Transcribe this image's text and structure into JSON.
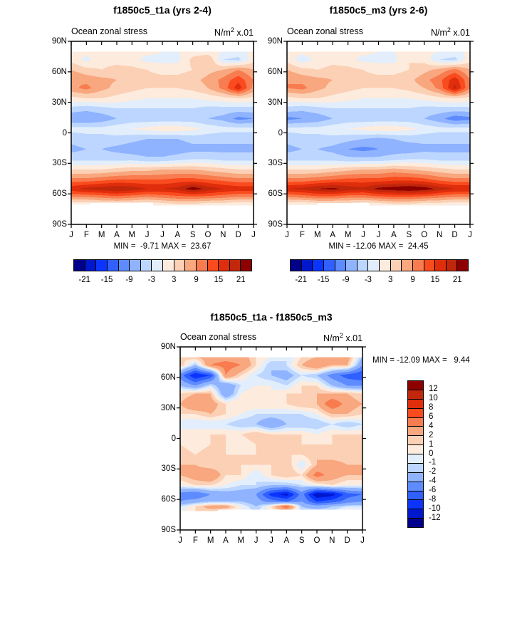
{
  "figure": {
    "field_label": "Ocean zonal stress",
    "unit_base": "N/m",
    "unit_sup": "2",
    "unit_tail": " x.01",
    "months": [
      "J",
      "F",
      "M",
      "A",
      "M",
      "J",
      "J",
      "A",
      "S",
      "O",
      "N",
      "D",
      "J"
    ],
    "lat_ticks": [
      "90N",
      "60N",
      "30N",
      "0",
      "30S",
      "60S",
      "90S"
    ]
  },
  "palette": [
    "#00008B",
    "#0018CD",
    "#0B35FF",
    "#3060FF",
    "#5E8BFF",
    "#8FB3FF",
    "#BCD6FF",
    "#E2EEFB",
    "#FDEBDD",
    "#FBD0B5",
    "#F8A77E",
    "#F87C4F",
    "#FA4B1E",
    "#E02D0C",
    "#C1270B",
    "#8E0000"
  ],
  "chart_data": [
    {
      "type": "heatmap",
      "subtype": "filled-contour-hovmoller",
      "title": "f1850c5_t1a (yrs 2-4)",
      "subtitle_left": "Ocean zonal stress",
      "subtitle_right": "N/m2 x.01",
      "x_tick_labels": [
        "J",
        "F",
        "M",
        "A",
        "M",
        "J",
        "J",
        "A",
        "S",
        "O",
        "N",
        "D",
        "J"
      ],
      "y_tick_labels": [
        "90N",
        "60N",
        "30N",
        "0",
        "30S",
        "60S",
        "90S"
      ],
      "ylim": [
        90,
        -90
      ],
      "min": -9.71,
      "max": 23.67,
      "minmax_label": "MIN =  -9.71 MAX =  23.67",
      "levels": [
        -21,
        -18,
        -15,
        -12,
        -9,
        -6,
        -3,
        0,
        3,
        6,
        9,
        12,
        15,
        18,
        21
      ],
      "colorbar": {
        "orientation": "horizontal",
        "labels": [
          "-21",
          "-15",
          "-9",
          "-3",
          "3",
          "9",
          "15",
          "21"
        ],
        "label_boundaries": [
          1,
          3,
          5,
          7,
          9,
          11,
          13,
          15
        ]
      },
      "lats": [
        80,
        72,
        62,
        52,
        44,
        34,
        24,
        14,
        4,
        -6,
        -16,
        -26,
        -36,
        -46,
        -55,
        -63,
        -69,
        -73
      ],
      "values": [
        [
          1,
          1,
          2,
          2,
          1,
          1,
          0,
          0,
          1,
          1,
          0,
          -1,
          1
        ],
        [
          2,
          -1,
          2,
          2,
          1,
          -1,
          -1,
          -1,
          4,
          6,
          -3,
          -4,
          2
        ],
        [
          6,
          4,
          3,
          4,
          4,
          3,
          2,
          2,
          3,
          5,
          6,
          9,
          6
        ],
        [
          9,
          8,
          7,
          6,
          5,
          4,
          4,
          4,
          5,
          7,
          10,
          14,
          9
        ],
        [
          8,
          10,
          7,
          5,
          4,
          3,
          3,
          3,
          4,
          6,
          10,
          17,
          8
        ],
        [
          2,
          3,
          3,
          2,
          1,
          0,
          0,
          0,
          0,
          1,
          2,
          3,
          2
        ],
        [
          -4,
          -5,
          -4,
          -3,
          -3,
          -3,
          -3,
          -3,
          -3,
          -4,
          -4,
          -4,
          -4
        ],
        [
          -9,
          -9,
          -8,
          -6,
          -5,
          -5,
          -5,
          -5,
          -5,
          -6,
          -7,
          -10,
          -9
        ],
        [
          -2,
          -2,
          -2,
          -1,
          0,
          1,
          2,
          2,
          1,
          -1,
          -2,
          -2,
          -2
        ],
        [
          -5,
          -4,
          -4,
          -4,
          -5,
          -6,
          -6,
          -6,
          -5,
          -5,
          -5,
          -5,
          -5
        ],
        [
          -7,
          -6,
          -6,
          -7,
          -8,
          -9,
          -9,
          -8,
          -7,
          -7,
          -7,
          -7,
          -7
        ],
        [
          -4,
          -4,
          -4,
          -4,
          -4,
          -5,
          -5,
          -4,
          -3,
          -3,
          -4,
          -4,
          -4
        ],
        [
          3,
          3,
          3,
          4,
          5,
          5,
          6,
          6,
          6,
          5,
          4,
          3,
          3
        ],
        [
          10,
          10,
          11,
          12,
          12,
          12,
          12,
          13,
          13,
          12,
          11,
          10,
          10
        ],
        [
          17,
          19,
          20,
          21,
          20,
          18,
          18,
          19,
          23,
          20,
          18,
          17,
          17
        ],
        [
          9,
          9,
          10,
          11,
          10,
          9,
          10,
          11,
          11,
          11,
          10,
          9,
          9
        ],
        [
          2,
          2,
          3,
          3,
          3,
          2,
          3,
          4,
          4,
          3,
          3,
          2,
          2
        ],
        [
          -1,
          -1,
          0,
          0,
          0,
          -1,
          -1,
          0,
          0,
          -1,
          -1,
          -1,
          -1
        ]
      ],
      "mask_below": [
        [
          0,
          1.3,
          -70.5
        ],
        [
          1.3,
          5.4,
          -68.5
        ],
        [
          5.4,
          12,
          -71.5
        ]
      ]
    },
    {
      "type": "heatmap",
      "subtype": "filled-contour-hovmoller",
      "title": "f1850c5_m3 (yrs 2-6)",
      "subtitle_left": "Ocean zonal stress",
      "subtitle_right": "N/m2 x.01",
      "x_tick_labels": [
        "J",
        "F",
        "M",
        "A",
        "M",
        "J",
        "J",
        "A",
        "S",
        "O",
        "N",
        "D",
        "J"
      ],
      "y_tick_labels": [
        "90N",
        "60N",
        "30N",
        "0",
        "30S",
        "60S",
        "90S"
      ],
      "ylim": [
        90,
        -90
      ],
      "min": -12.06,
      "max": 24.45,
      "minmax_label": "MIN = -12.06 MAX =  24.45",
      "levels": [
        -21,
        -18,
        -15,
        -12,
        -9,
        -6,
        -3,
        0,
        3,
        6,
        9,
        12,
        15,
        18,
        21
      ],
      "colorbar": {
        "orientation": "horizontal",
        "labels": [
          "-21",
          "-15",
          "-9",
          "-3",
          "3",
          "9",
          "15",
          "21"
        ],
        "label_boundaries": [
          1,
          3,
          5,
          7,
          9,
          11,
          13,
          15
        ]
      },
      "lats": [
        80,
        72,
        62,
        52,
        44,
        34,
        24,
        14,
        4,
        -6,
        -16,
        -26,
        -36,
        -46,
        -55,
        -63,
        -69,
        -73
      ],
      "values": [
        [
          1,
          1,
          2,
          2,
          1,
          1,
          0,
          0,
          2,
          1,
          0,
          -1,
          1
        ],
        [
          2,
          -2,
          1,
          2,
          1,
          -1,
          -1,
          -1,
          3,
          2,
          -3,
          -4,
          2
        ],
        [
          6,
          4,
          3,
          4,
          4,
          3,
          2,
          2,
          3,
          5,
          7,
          10,
          6
        ],
        [
          9,
          8,
          7,
          6,
          5,
          4,
          4,
          4,
          5,
          8,
          11,
          17,
          9
        ],
        [
          9,
          10,
          7,
          5,
          4,
          3,
          3,
          3,
          4,
          6,
          10,
          19,
          9
        ],
        [
          2,
          3,
          3,
          2,
          1,
          0,
          0,
          0,
          0,
          1,
          2,
          3,
          2
        ],
        [
          -4,
          -5,
          -4,
          -3,
          -3,
          -3,
          -3,
          -3,
          -3,
          -4,
          -4,
          -4,
          -4
        ],
        [
          -10,
          -9,
          -8,
          -6,
          -5,
          -5,
          -5,
          -5,
          -5,
          -6,
          -8,
          -11,
          -10
        ],
        [
          -2,
          -2,
          -2,
          -1,
          0,
          1,
          2,
          2,
          1,
          -1,
          -2,
          -2,
          -2
        ],
        [
          -5,
          -4,
          -4,
          -4,
          -5,
          -6,
          -7,
          -6,
          -5,
          -5,
          -5,
          -5,
          -5
        ],
        [
          -7,
          -6,
          -6,
          -7,
          -9,
          -10,
          -9,
          -8,
          -8,
          -7,
          -7,
          -7,
          -7
        ],
        [
          -4,
          -4,
          -4,
          -4,
          -5,
          -5,
          -5,
          -4,
          -3,
          -3,
          -4,
          -4,
          -4
        ],
        [
          3,
          3,
          3,
          4,
          5,
          6,
          6,
          7,
          6,
          5,
          4,
          3,
          3
        ],
        [
          10,
          10,
          11,
          12,
          13,
          13,
          13,
          14,
          14,
          13,
          11,
          10,
          10
        ],
        [
          18,
          19,
          21,
          22,
          20,
          19,
          22,
          23,
          24,
          23,
          20,
          18,
          18
        ],
        [
          9,
          10,
          11,
          11,
          10,
          10,
          11,
          12,
          12,
          11,
          10,
          9,
          9
        ],
        [
          2,
          2,
          3,
          3,
          3,
          2,
          3,
          4,
          4,
          3,
          3,
          2,
          2
        ],
        [
          -1,
          -1,
          0,
          0,
          0,
          -1,
          -1,
          0,
          0,
          -1,
          -2,
          -2,
          -1
        ]
      ],
      "mask_below": [
        [
          0,
          2,
          -71
        ],
        [
          2,
          5.4,
          -69
        ],
        [
          5.4,
          12,
          -71.5
        ]
      ]
    },
    {
      "type": "heatmap",
      "subtype": "filled-contour-hovmoller-difference",
      "title": "f1850c5_t1a - f1850c5_m3",
      "subtitle_left": "Ocean zonal stress",
      "subtitle_right": "N/m2 x.01",
      "x_tick_labels": [
        "J",
        "F",
        "M",
        "A",
        "M",
        "J",
        "J",
        "A",
        "S",
        "O",
        "N",
        "D",
        "J"
      ],
      "y_tick_labels": [
        "90N",
        "60N",
        "30N",
        "0",
        "30S",
        "60S",
        "90S"
      ],
      "ylim": [
        90,
        -90
      ],
      "min": -12.09,
      "max": 9.44,
      "minmax_label": "MIN = -12.09 MAX =   9.44",
      "levels": [
        -12,
        -10,
        -8,
        -6,
        -4,
        -2,
        -1,
        0,
        1,
        2,
        4,
        6,
        8,
        10,
        12
      ],
      "colorbar": {
        "orientation": "vertical",
        "labels": [
          "12",
          "10",
          "8",
          "6",
          "4",
          "2",
          "1",
          "0",
          "-1",
          "-2",
          "-4",
          "-6",
          "-8",
          "-10",
          "-12"
        ],
        "label_boundaries": [
          1,
          2,
          3,
          4,
          5,
          6,
          7,
          8,
          9,
          10,
          11,
          12,
          13,
          14,
          15
        ]
      },
      "lats": [
        80,
        72,
        62,
        52,
        44,
        34,
        24,
        14,
        4,
        -6,
        -16,
        -26,
        -36,
        -46,
        -55,
        -62,
        -67,
        -72
      ],
      "values": [
        [
          1,
          2,
          3,
          3,
          3,
          1,
          0,
          -1,
          1,
          2,
          2,
          3,
          -2
        ],
        [
          2,
          -2,
          4,
          5,
          4,
          1,
          -2,
          -1,
          2,
          4,
          2,
          2,
          -4
        ],
        [
          -5,
          -10,
          -8,
          4,
          1,
          -1,
          -2,
          -3,
          -1,
          -2,
          -5,
          -7,
          -8
        ],
        [
          -2,
          -4,
          -1,
          -4,
          -1,
          0,
          0,
          -1,
          1,
          1,
          -2,
          -4,
          -4
        ],
        [
          1,
          2,
          2,
          -4,
          0,
          1,
          0,
          1,
          1,
          2,
          2,
          2,
          1
        ],
        [
          2,
          4,
          3,
          1,
          1,
          1,
          1,
          1,
          2,
          2,
          6,
          3,
          2
        ],
        [
          1,
          1,
          2,
          1,
          0,
          -1,
          -1,
          -1,
          -1,
          0,
          2,
          2,
          1
        ],
        [
          -1,
          -1,
          -1,
          -1,
          -2,
          -2,
          -4,
          -2,
          -2,
          -2,
          -1,
          -2,
          -1
        ],
        [
          1,
          1,
          1,
          1,
          1,
          2,
          1,
          1,
          1,
          0,
          1,
          1,
          1
        ],
        [
          1,
          0,
          1,
          1,
          0,
          1,
          2,
          2,
          1,
          1,
          1,
          2,
          1
        ],
        [
          2,
          1,
          2,
          1,
          1,
          1,
          2,
          1,
          1,
          2,
          1,
          1,
          2
        ],
        [
          2,
          2,
          1,
          1,
          1,
          1,
          1,
          2,
          -1,
          2,
          3,
          2,
          2
        ],
        [
          2,
          3,
          4,
          1,
          1,
          -1,
          1,
          2,
          1,
          5,
          3,
          2,
          2
        ],
        [
          0,
          1,
          1,
          0,
          -1,
          -1,
          -2,
          -2,
          -1,
          0,
          1,
          0,
          0
        ],
        [
          -5,
          -6,
          -4,
          -3,
          -3,
          -4,
          -9,
          -11,
          -5,
          -12,
          -11,
          -7,
          -6
        ],
        [
          -4,
          -3,
          -2,
          -2,
          -2,
          -3,
          -5,
          -6,
          -4,
          -8,
          -7,
          -5,
          -4
        ],
        [
          -1,
          1,
          3,
          3,
          0,
          -2,
          1,
          6,
          -2,
          -3,
          -2,
          -1,
          -1
        ],
        [
          0,
          1,
          1,
          0,
          0,
          -1,
          0,
          1,
          -1,
          -1,
          -1,
          1,
          0
        ]
      ],
      "mask_below": [
        [
          0,
          2.5,
          -71.5
        ],
        [
          2.5,
          12,
          -70
        ]
      ]
    }
  ]
}
